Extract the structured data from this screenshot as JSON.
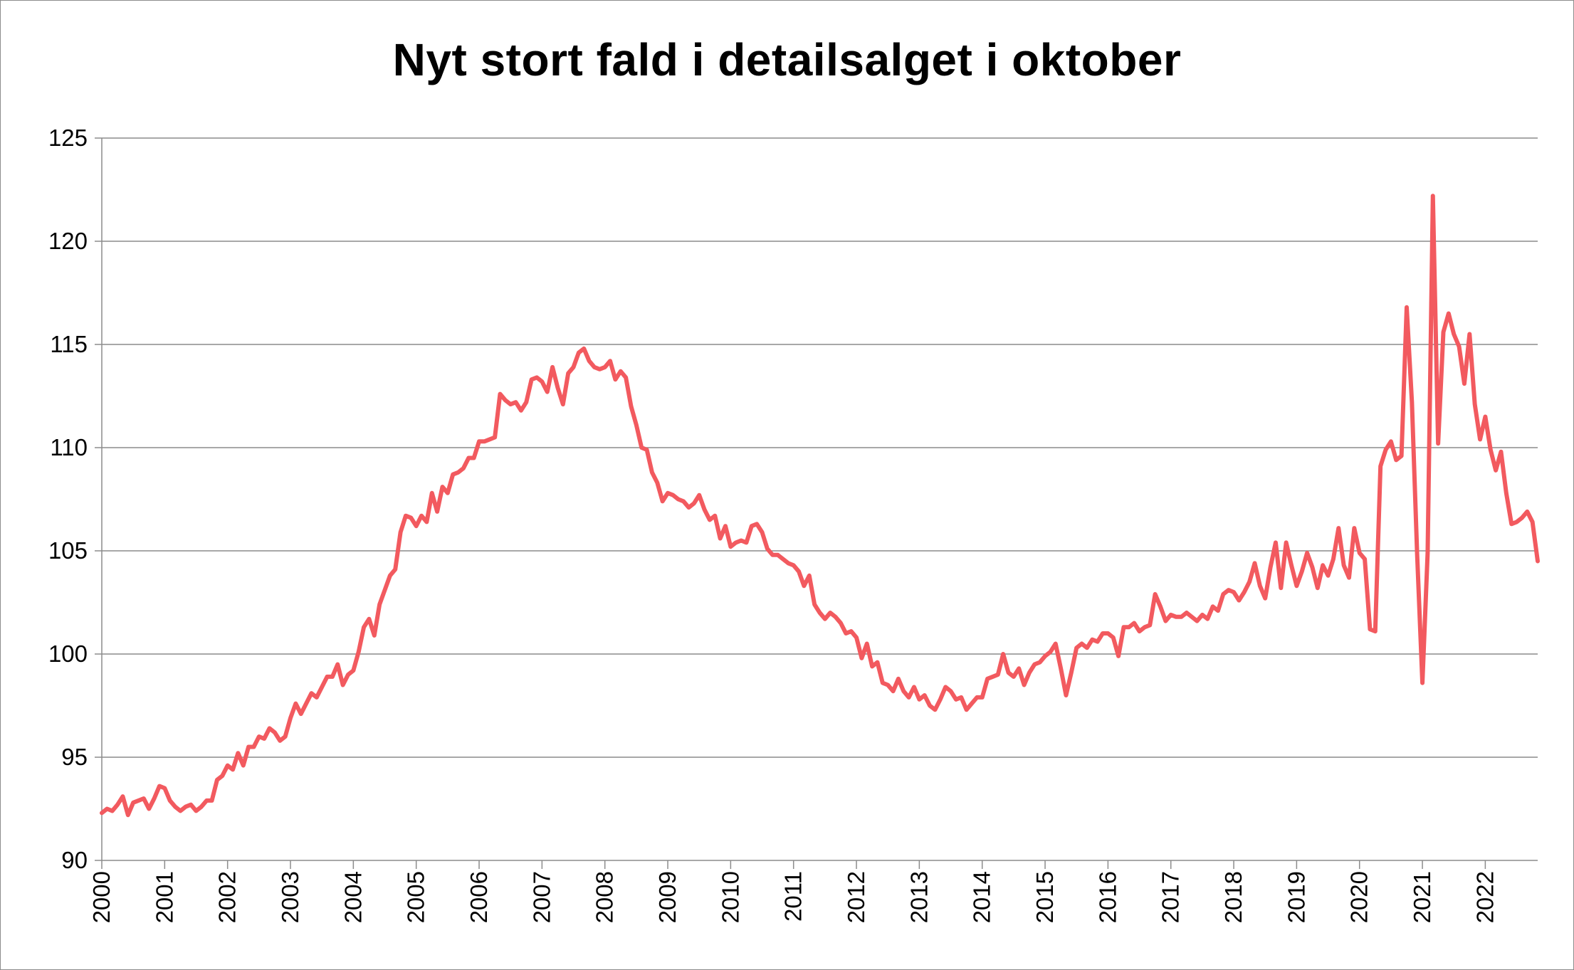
{
  "chart_data": {
    "type": "line",
    "title": "Nyt stort fald i detailsalget i oktober",
    "xlabel": "",
    "ylabel": "",
    "ylim": [
      90,
      125
    ],
    "yticks": [
      90,
      95,
      100,
      105,
      110,
      115,
      120,
      125
    ],
    "xticks": [
      "2000",
      "2001",
      "2002",
      "2003",
      "2004",
      "2005",
      "2006",
      "2007",
      "2008",
      "2009",
      "2010",
      "2011",
      "2012",
      "2013",
      "2014",
      "2015",
      "2016",
      "2017",
      "2018",
      "2019",
      "2020",
      "2021",
      "2022"
    ],
    "grid": "horizontal",
    "legend": "none",
    "line_color": "#f25a5f",
    "start": "2000-01",
    "end": "2022-10",
    "frequency": "monthly",
    "series": [
      {
        "values": [
          92.3,
          92.5,
          92.4,
          92.7,
          93.1,
          92.2,
          92.8,
          92.9,
          93.0,
          92.5,
          93.0,
          93.6,
          93.5,
          92.9,
          92.6,
          92.4,
          92.6,
          92.7,
          92.4,
          92.6,
          92.9,
          92.9,
          93.9,
          94.1,
          94.6,
          94.4,
          95.2,
          94.6,
          95.5,
          95.5,
          96.0,
          95.9,
          96.4,
          96.2,
          95.8,
          96.0,
          96.9,
          97.6,
          97.1,
          97.6,
          98.1,
          97.9,
          98.4,
          98.9,
          98.9,
          99.5,
          98.5,
          99.0,
          99.2,
          100.1,
          101.3,
          101.7,
          100.9,
          102.4,
          103.1,
          103.8,
          104.1,
          105.9,
          106.7,
          106.6,
          106.2,
          106.7,
          106.4,
          107.8,
          106.9,
          108.1,
          107.8,
          108.7,
          108.8,
          109.0,
          109.5,
          109.5,
          110.3,
          110.3,
          110.4,
          110.5,
          112.6,
          112.3,
          112.1,
          112.2,
          111.8,
          112.2,
          113.3,
          113.4,
          113.2,
          112.7,
          113.9,
          112.9,
          112.1,
          113.6,
          113.9,
          114.6,
          114.8,
          114.2,
          113.9,
          113.8,
          113.9,
          114.2,
          113.3,
          113.7,
          113.4,
          112.0,
          111.1,
          110.0,
          109.9,
          108.8,
          108.3,
          107.4,
          107.8,
          107.7,
          107.5,
          107.4,
          107.1,
          107.3,
          107.7,
          107.0,
          106.5,
          106.7,
          105.6,
          106.2,
          105.2,
          105.4,
          105.5,
          105.4,
          106.2,
          106.3,
          105.9,
          105.1,
          104.8,
          104.8,
          104.6,
          104.4,
          104.3,
          104.0,
          103.3,
          103.8,
          102.4,
          102.0,
          101.7,
          102.0,
          101.8,
          101.5,
          101.0,
          101.1,
          100.8,
          99.8,
          100.5,
          99.4,
          99.6,
          98.6,
          98.5,
          98.2,
          98.8,
          98.2,
          97.9,
          98.4,
          97.8,
          98.0,
          97.5,
          97.3,
          97.8,
          98.4,
          98.2,
          97.8,
          97.9,
          97.3,
          97.6,
          97.9,
          97.9,
          98.8,
          98.9,
          99.0,
          100.0,
          99.1,
          98.9,
          99.3,
          98.5,
          99.1,
          99.5,
          99.6,
          99.9,
          100.1,
          100.5,
          99.3,
          98.0,
          99.1,
          100.3,
          100.5,
          100.3,
          100.7,
          100.6,
          101.0,
          101.0,
          100.8,
          99.9,
          101.3,
          101.3,
          101.5,
          101.1,
          101.3,
          101.4,
          102.9,
          102.3,
          101.6,
          101.9,
          101.8,
          101.8,
          102.0,
          101.8,
          101.6,
          101.9,
          101.7,
          102.3,
          102.1,
          102.9,
          103.1,
          103.0,
          102.6,
          103.0,
          103.5,
          104.4,
          103.3,
          102.7,
          104.2,
          105.4,
          103.2,
          105.4,
          104.3,
          103.3,
          104.0,
          104.9,
          104.2,
          103.2,
          104.3,
          103.8,
          104.6,
          106.1,
          104.3,
          103.7,
          106.1,
          104.9,
          104.6,
          101.2,
          101.1,
          109.1,
          109.9,
          110.3,
          109.4,
          109.6,
          116.8,
          112.2,
          104.8,
          98.6,
          104.9,
          122.2,
          110.2,
          115.6,
          116.5,
          115.5,
          114.9,
          113.1,
          115.5,
          112.1,
          110.4,
          111.5,
          109.9,
          108.9,
          109.8,
          107.8,
          106.3,
          106.4,
          106.6,
          106.9,
          106.4,
          104.5
        ]
      }
    ]
  }
}
